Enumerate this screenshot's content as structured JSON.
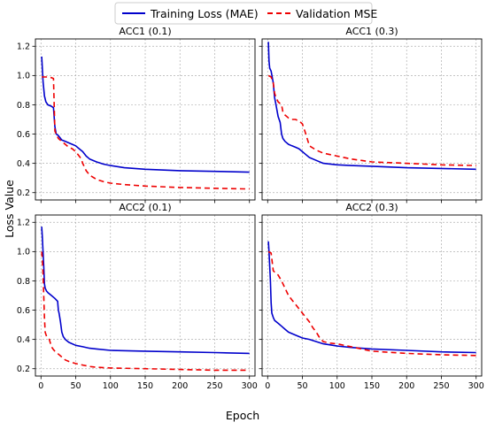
{
  "figure": {
    "ylabel": "Loss Value",
    "xlabel": "Epoch"
  },
  "legend": {
    "entries": [
      {
        "label": "Training Loss (MAE)",
        "color": "#0000cc",
        "style": "solid"
      },
      {
        "label": "Validation MSE",
        "color": "#ee0000",
        "style": "dashed"
      }
    ],
    "placement": "top-center"
  },
  "chart_data": [
    {
      "type": "line",
      "title": "ACC1 (0.1)",
      "xlim": [
        -8,
        308
      ],
      "ylim": [
        0.15,
        1.25
      ],
      "xticks": [
        0,
        50,
        100,
        150,
        200,
        250,
        300
      ],
      "yticks": [
        0.2,
        0.4,
        0.6,
        0.8,
        1.0,
        1.2
      ],
      "show_xticklabels": false,
      "show_yticklabels": true,
      "grid": true,
      "series": [
        {
          "name": "Training Loss (MAE)",
          "color": "#0000cc",
          "dash": "none",
          "x": [
            1,
            3,
            5,
            7,
            10,
            15,
            18,
            20,
            22,
            25,
            30,
            35,
            40,
            45,
            50,
            55,
            60,
            65,
            70,
            80,
            90,
            100,
            120,
            150,
            200,
            250,
            300
          ],
          "y": [
            1.13,
            0.96,
            0.86,
            0.82,
            0.8,
            0.79,
            0.78,
            0.65,
            0.6,
            0.59,
            0.56,
            0.55,
            0.54,
            0.53,
            0.52,
            0.5,
            0.48,
            0.45,
            0.43,
            0.41,
            0.395,
            0.385,
            0.37,
            0.36,
            0.35,
            0.345,
            0.34
          ]
        },
        {
          "name": "Validation MSE",
          "color": "#ee0000",
          "dash": "6,4",
          "x": [
            1,
            10,
            15,
            18,
            19,
            20,
            22,
            25,
            30,
            35,
            40,
            45,
            50,
            55,
            58,
            60,
            65,
            70,
            80,
            90,
            100,
            120,
            150,
            200,
            250,
            300
          ],
          "y": [
            0.99,
            0.99,
            0.985,
            0.98,
            0.8,
            0.62,
            0.6,
            0.57,
            0.55,
            0.53,
            0.51,
            0.5,
            0.48,
            0.45,
            0.43,
            0.4,
            0.35,
            0.32,
            0.29,
            0.275,
            0.265,
            0.255,
            0.245,
            0.235,
            0.23,
            0.225
          ]
        }
      ]
    },
    {
      "type": "line",
      "title": "ACC1 (0.3)",
      "xlim": [
        -8,
        308
      ],
      "ylim": [
        0.15,
        1.25
      ],
      "xticks": [
        0,
        50,
        100,
        150,
        200,
        250,
        300
      ],
      "yticks": [
        0.2,
        0.4,
        0.6,
        0.8,
        1.0,
        1.2
      ],
      "show_xticklabels": false,
      "show_yticklabels": false,
      "grid": true,
      "series": [
        {
          "name": "Training Loss (MAE)",
          "color": "#0000cc",
          "dash": "none",
          "x": [
            1,
            2,
            3,
            5,
            8,
            10,
            12,
            15,
            18,
            20,
            22,
            25,
            30,
            35,
            40,
            45,
            50,
            55,
            60,
            70,
            80,
            100,
            120,
            150,
            200,
            250,
            300
          ],
          "y": [
            1.23,
            1.1,
            1.05,
            1.03,
            0.95,
            0.85,
            0.8,
            0.72,
            0.68,
            0.6,
            0.57,
            0.55,
            0.53,
            0.52,
            0.51,
            0.5,
            0.48,
            0.46,
            0.44,
            0.42,
            0.4,
            0.39,
            0.385,
            0.38,
            0.37,
            0.365,
            0.36
          ]
        },
        {
          "name": "Validation MSE",
          "color": "#ee0000",
          "dash": "6,4",
          "x": [
            1,
            5,
            8,
            10,
            12,
            15,
            20,
            22,
            25,
            30,
            35,
            40,
            45,
            50,
            55,
            60,
            70,
            80,
            100,
            120,
            150,
            200,
            250,
            300
          ],
          "y": [
            1.0,
            0.99,
            0.95,
            0.88,
            0.85,
            0.82,
            0.8,
            0.75,
            0.73,
            0.71,
            0.7,
            0.7,
            0.69,
            0.67,
            0.6,
            0.52,
            0.49,
            0.47,
            0.45,
            0.43,
            0.41,
            0.4,
            0.39,
            0.385
          ]
        }
      ]
    },
    {
      "type": "line",
      "title": "ACC2 (0.1)",
      "xlim": [
        -8,
        308
      ],
      "ylim": [
        0.15,
        1.25
      ],
      "xticks": [
        0,
        50,
        100,
        150,
        200,
        250,
        300
      ],
      "yticks": [
        0.2,
        0.4,
        0.6,
        0.8,
        1.0,
        1.2
      ],
      "show_xticklabels": true,
      "show_yticklabels": true,
      "grid": true,
      "series": [
        {
          "name": "Training Loss (MAE)",
          "color": "#0000cc",
          "dash": "none",
          "x": [
            1,
            2,
            4,
            5,
            6,
            8,
            10,
            15,
            20,
            24,
            25,
            26,
            28,
            30,
            32,
            35,
            40,
            50,
            60,
            70,
            80,
            100,
            150,
            200,
            250,
            300
          ],
          "y": [
            1.17,
            1.1,
            0.9,
            0.78,
            0.75,
            0.73,
            0.72,
            0.7,
            0.68,
            0.66,
            0.6,
            0.58,
            0.52,
            0.45,
            0.42,
            0.4,
            0.38,
            0.36,
            0.35,
            0.34,
            0.335,
            0.325,
            0.32,
            0.315,
            0.31,
            0.305
          ]
        },
        {
          "name": "Validation MSE",
          "color": "#ee0000",
          "dash": "6,4",
          "x": [
            1,
            2,
            3,
            4,
            5,
            6,
            8,
            10,
            12,
            15,
            18,
            20,
            25,
            30,
            35,
            40,
            50,
            60,
            70,
            80,
            100,
            150,
            200,
            250,
            300
          ],
          "y": [
            1.0,
            0.95,
            0.85,
            0.7,
            0.55,
            0.45,
            0.42,
            0.41,
            0.4,
            0.35,
            0.33,
            0.32,
            0.3,
            0.28,
            0.26,
            0.25,
            0.235,
            0.225,
            0.215,
            0.21,
            0.205,
            0.2,
            0.195,
            0.19,
            0.19
          ]
        }
      ]
    },
    {
      "type": "line",
      "title": "ACC2 (0.3)",
      "xlim": [
        -8,
        308
      ],
      "ylim": [
        0.15,
        1.25
      ],
      "xticks": [
        0,
        50,
        100,
        150,
        200,
        250,
        300
      ],
      "yticks": [
        0.2,
        0.4,
        0.6,
        0.8,
        1.0,
        1.2
      ],
      "show_xticklabels": true,
      "show_yticklabels": false,
      "grid": true,
      "series": [
        {
          "name": "Training Loss (MAE)",
          "color": "#0000cc",
          "dash": "none",
          "x": [
            1,
            2,
            3,
            4,
            5,
            6,
            8,
            10,
            15,
            20,
            25,
            30,
            40,
            50,
            60,
            80,
            100,
            120,
            150,
            200,
            250,
            300
          ],
          "y": [
            1.07,
            1.0,
            0.9,
            0.8,
            0.65,
            0.58,
            0.55,
            0.53,
            0.51,
            0.49,
            0.47,
            0.45,
            0.43,
            0.41,
            0.4,
            0.37,
            0.355,
            0.345,
            0.335,
            0.325,
            0.315,
            0.31
          ]
        },
        {
          "name": "Validation MSE",
          "color": "#ee0000",
          "dash": "6,4",
          "x": [
            1,
            5,
            8,
            10,
            12,
            15,
            20,
            25,
            30,
            35,
            40,
            45,
            50,
            55,
            60,
            65,
            70,
            75,
            80,
            90,
            100,
            110,
            120,
            150,
            200,
            250,
            300
          ],
          "y": [
            1.0,
            0.99,
            0.87,
            0.86,
            0.85,
            0.84,
            0.8,
            0.75,
            0.7,
            0.67,
            0.64,
            0.61,
            0.58,
            0.55,
            0.52,
            0.48,
            0.45,
            0.41,
            0.385,
            0.375,
            0.37,
            0.36,
            0.35,
            0.32,
            0.305,
            0.295,
            0.29
          ]
        }
      ]
    }
  ]
}
